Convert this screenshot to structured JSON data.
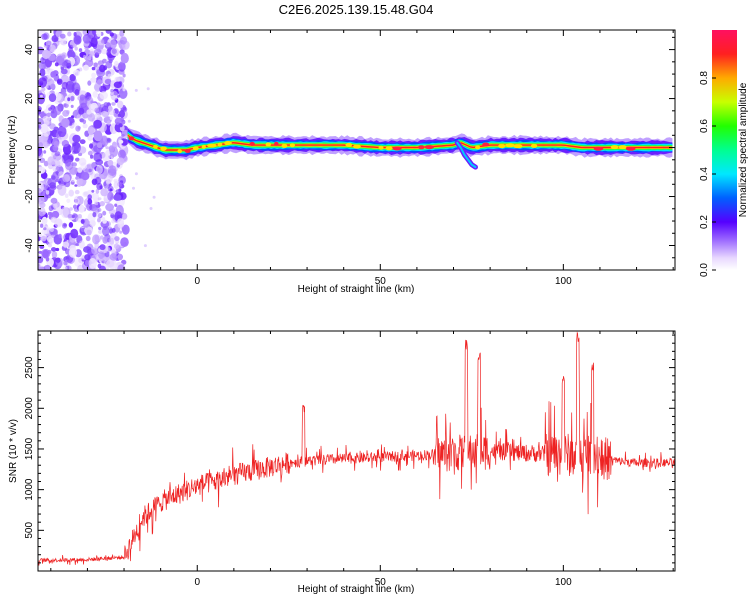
{
  "title": "C2E6.2025.139.15.48.G04",
  "chart_data": [
    {
      "type": "heatmap",
      "xlabel": "Height of straight line (km)",
      "ylabel": "Frequency (Hz)",
      "xlim": [
        -43.5,
        130.5
      ],
      "ylim": [
        -50,
        48
      ],
      "xticks": [
        0,
        50,
        100
      ],
      "yticks": [
        -40,
        -20,
        0,
        20,
        40
      ],
      "colorbar": {
        "label": "Normalized spectral amplitude",
        "range": [
          0,
          1
        ],
        "ticks": [
          0.0,
          0.2,
          0.4,
          0.6,
          0.8
        ]
      },
      "noise_region_x": [
        -43.5,
        -19.5
      ],
      "signal_track": {
        "x": [
          -19,
          -17,
          -15,
          -13,
          -11,
          -9,
          -7,
          -5,
          -3,
          0,
          5,
          10,
          15,
          20,
          30,
          40,
          50,
          60,
          70,
          72,
          75,
          80,
          90,
          100,
          105,
          110,
          115,
          120,
          130.5
        ],
        "frequency": [
          5,
          3,
          2,
          1,
          0,
          -1,
          -1,
          -1,
          -1,
          0,
          1,
          2,
          1,
          1,
          1,
          1,
          0,
          0,
          1,
          2,
          0,
          1,
          1,
          1,
          0,
          0,
          0,
          0,
          0
        ]
      },
      "branch": {
        "x": [
          71,
          72,
          73,
          74,
          75,
          76
        ],
        "frequency": [
          2,
          0,
          -3,
          -5,
          -7,
          -8
        ]
      }
    },
    {
      "type": "line",
      "xlabel": "Height of straight line (km)",
      "ylabel": "SNR (10 * v/v)",
      "xlim": [
        -43.5,
        130.5
      ],
      "ylim": [
        0,
        2950
      ],
      "xticks": [
        0,
        50,
        100
      ],
      "yticks": [
        500,
        1000,
        1500,
        2000,
        2500
      ],
      "color": "#ee2222",
      "trend": {
        "x": [
          -43.5,
          -30,
          -20,
          -18,
          -15,
          -10,
          -5,
          0,
          5,
          10,
          15,
          20,
          25,
          30,
          40,
          50,
          60,
          70,
          80,
          90,
          100,
          105,
          110,
          115,
          120,
          130.5
        ],
        "snr": [
          130,
          140,
          170,
          350,
          650,
          850,
          950,
          1050,
          1100,
          1180,
          1230,
          1280,
          1330,
          1350,
          1380,
          1400,
          1420,
          1450,
          1470,
          1450,
          1430,
          1420,
          1400,
          1350,
          1330,
          1330
        ]
      },
      "peaks": [
        {
          "x": 73.5,
          "snr": 2850
        },
        {
          "x": 77,
          "snr": 2700
        },
        {
          "x": 100,
          "snr": 2400
        },
        {
          "x": 104,
          "snr": 2950
        },
        {
          "x": 108,
          "snr": 2600
        },
        {
          "x": 29,
          "snr": 2050
        }
      ]
    }
  ]
}
